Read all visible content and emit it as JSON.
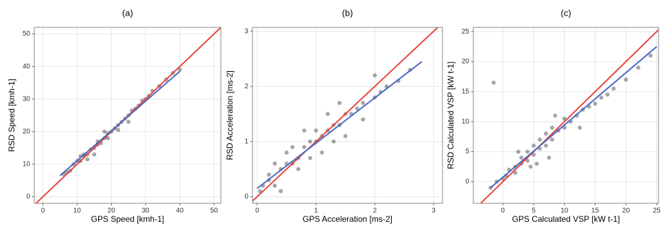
{
  "chart_data": [
    {
      "type": "scatter",
      "title": "(a)",
      "x_label": "GPS Speed [kmh-1]",
      "y_label": "RSD Speed [kmh-1]",
      "xlim": [
        -2.5,
        52
      ],
      "ylim": [
        -2,
        52
      ],
      "xticks": [
        0,
        10,
        20,
        30,
        40,
        50
      ],
      "yticks": [
        0,
        10,
        20,
        30,
        40,
        50
      ],
      "grid": true,
      "point_color": "#000000",
      "x": [
        6,
        7,
        8,
        9,
        10,
        11,
        12,
        12,
        13,
        14,
        15,
        16,
        17,
        18,
        19,
        20,
        21,
        22,
        23,
        24,
        25,
        26,
        27,
        28,
        29,
        30,
        31,
        32,
        34,
        36,
        38,
        40,
        15,
        13,
        11,
        18,
        22,
        25,
        16,
        19
      ],
      "y": [
        7,
        7.5,
        8,
        10,
        11,
        11,
        12.5,
        13,
        13,
        14.5,
        15,
        16,
        16.5,
        18,
        19.5,
        20,
        21,
        22,
        23,
        24,
        25,
        26.5,
        27,
        28,
        29.5,
        30,
        31,
        32.5,
        34,
        36,
        38,
        39,
        13,
        11.5,
        12.5,
        20,
        20.5,
        23,
        17,
        18
      ],
      "lines": [
        {
          "color": "#e8453c",
          "x": [
            -2.5,
            52
          ],
          "y": [
            -2.5,
            52
          ]
        },
        {
          "color": "#4a67c6",
          "x": [
            5,
            40
          ],
          "y": [
            6.5,
            38.5
          ]
        }
      ]
    },
    {
      "type": "scatter",
      "title": "(b)",
      "x_label": "GPS Acceleration [ms-2]",
      "y_label": "RSD Acceleration [ms-2]",
      "xlim": [
        -0.08,
        3.15
      ],
      "ylim": [
        -0.12,
        3.07
      ],
      "xticks": [
        0,
        1,
        2,
        3
      ],
      "yticks": [
        0,
        1,
        2,
        3
      ],
      "grid": true,
      "point_color": "#000000",
      "x": [
        0.05,
        0.1,
        0.2,
        0.3,
        0.2,
        0.4,
        0.5,
        0.6,
        0.5,
        0.7,
        0.8,
        0.9,
        1.0,
        1.1,
        1.0,
        1.2,
        1.3,
        1.4,
        1.5,
        1.6,
        1.7,
        1.8,
        2.0,
        2.1,
        2.2,
        2.4,
        2.6,
        0.3,
        0.6,
        0.9,
        1.2,
        1.5,
        1.8,
        0.8,
        1.1,
        1.4,
        0.4,
        2.0,
        1.3,
        0.7
      ],
      "y": [
        0.1,
        0.2,
        0.3,
        0.2,
        0.4,
        0.5,
        0.6,
        0.6,
        0.8,
        0.7,
        0.9,
        1.0,
        1.0,
        1.1,
        1.2,
        1.2,
        1.3,
        1.3,
        1.5,
        1.5,
        1.6,
        1.7,
        1.8,
        1.9,
        2.0,
        2.1,
        2.3,
        0.6,
        0.9,
        0.7,
        1.5,
        1.1,
        1.4,
        1.2,
        0.8,
        1.7,
        0.1,
        2.2,
        1.0,
        0.5
      ],
      "lines": [
        {
          "color": "#e8453c",
          "x": [
            -0.08,
            3.07
          ],
          "y": [
            -0.08,
            3.07
          ]
        },
        {
          "color": "#4a67c6",
          "x": [
            0,
            2.8
          ],
          "y": [
            0.15,
            2.45
          ]
        }
      ]
    },
    {
      "type": "scatter",
      "title": "(c)",
      "x_label": "GPS Calculated VSP [kW t-1]",
      "y_label": "RSD Calculated VSP [kW t-1]",
      "xlim": [
        -4.8,
        25.3
      ],
      "ylim": [
        -3.6,
        25.7
      ],
      "xticks": [
        0,
        5,
        10,
        15,
        20,
        25
      ],
      "yticks": [
        0,
        5,
        10,
        15,
        20,
        25
      ],
      "grid": true,
      "point_color": "#000000",
      "x": [
        -2,
        -1,
        0,
        0.5,
        1,
        2,
        2,
        3,
        3,
        4,
        4,
        5,
        5,
        6,
        6,
        7,
        7,
        8,
        8,
        9,
        10,
        10,
        11,
        12,
        13,
        14,
        15,
        16,
        18,
        20,
        22,
        24,
        -1.5,
        2.5,
        5.5,
        8.5,
        12.5,
        17,
        4.5,
        7.5
      ],
      "y": [
        -1,
        0,
        0.5,
        1,
        2,
        2.5,
        1.5,
        3,
        4,
        3.5,
        5,
        4.5,
        6,
        5.5,
        7,
        6,
        8,
        7,
        9,
        8.5,
        9,
        10.5,
        10,
        11,
        12,
        12.5,
        13,
        14,
        15.5,
        17,
        19,
        21,
        16.5,
        5,
        3,
        11,
        9,
        14.5,
        2.5,
        4
      ],
      "lines": [
        {
          "color": "#e8453c",
          "x": [
            -3.6,
            25.3
          ],
          "y": [
            -3.6,
            25.3
          ]
        },
        {
          "color": "#4a67c6",
          "x": [
            -2,
            25
          ],
          "y": [
            -1,
            22.5
          ]
        }
      ]
    }
  ]
}
